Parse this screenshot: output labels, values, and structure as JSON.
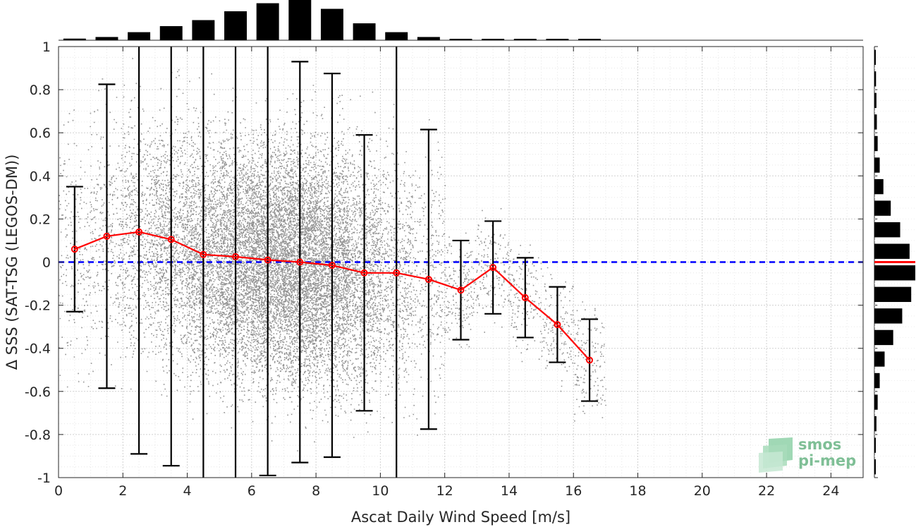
{
  "chart_data": {
    "type": "scatter",
    "xlabel": "Ascat Daily Wind Speed [m/s]",
    "ylabel": "Δ SSS (SAT-TSG (LEGOS-DM))",
    "xlim": [
      0,
      25
    ],
    "ylim": [
      -1,
      1
    ],
    "xticks": [
      0,
      2,
      4,
      6,
      8,
      10,
      12,
      14,
      16,
      18,
      20,
      22,
      24
    ],
    "yticks": [
      -1,
      -0.8,
      -0.6,
      -0.4,
      -0.2,
      0,
      0.2,
      0.4,
      0.6,
      0.8,
      1
    ],
    "grid": true,
    "zero_line": {
      "y": 0,
      "color": "#0000ff",
      "style": "dashed"
    },
    "scatter_color": "#808080",
    "binned_mean": {
      "color": "#ff0000",
      "x": [
        0.5,
        1.5,
        2.5,
        3.5,
        4.5,
        5.5,
        6.5,
        7.5,
        8.5,
        9.5,
        10.5,
        11.5,
        12.5,
        13.5,
        14.5,
        15.5,
        16.5
      ],
      "mean": [
        0.06,
        0.12,
        0.14,
        0.105,
        0.035,
        0.025,
        0.01,
        0.0,
        -0.015,
        -0.05,
        -0.05,
        -0.08,
        -0.13,
        -0.025,
        -0.165,
        -0.29,
        -0.455
      ],
      "std": [
        0.29,
        0.705,
        1.03,
        1.05,
        1.26,
        1.16,
        1.0,
        0.93,
        0.89,
        0.64,
        1.3,
        0.695,
        0.23,
        0.215,
        0.185,
        0.175,
        0.19
      ]
    },
    "top_histogram": {
      "bin_centers": [
        0.5,
        1.5,
        2.5,
        3.5,
        4.5,
        5.5,
        6.5,
        7.5,
        8.5,
        9.5,
        10.5,
        11.5,
        12.5,
        13.5,
        14.5,
        15.5,
        16.5
      ],
      "relative_counts": [
        0.04,
        0.08,
        0.2,
        0.35,
        0.5,
        0.72,
        0.92,
        1.0,
        0.78,
        0.42,
        0.2,
        0.08,
        0.03,
        0.02,
        0.015,
        0.012,
        0.01
      ]
    },
    "right_histogram": {
      "bin_centers": [
        0.95,
        0.85,
        0.75,
        0.65,
        0.55,
        0.45,
        0.35,
        0.25,
        0.15,
        0.05,
        -0.05,
        -0.15,
        -0.25,
        -0.35,
        -0.45,
        -0.55,
        -0.65,
        -0.75,
        -0.85,
        -0.95
      ],
      "relative_counts": [
        0.03,
        0.04,
        0.05,
        0.06,
        0.08,
        0.13,
        0.22,
        0.4,
        0.63,
        0.86,
        1.0,
        0.9,
        0.68,
        0.46,
        0.25,
        0.13,
        0.08,
        0.05,
        0.03,
        0.02
      ],
      "median_line": {
        "y": 0,
        "color": "#ff0000"
      }
    }
  },
  "logo": {
    "line1": "smos",
    "line2": "pi-mep"
  }
}
